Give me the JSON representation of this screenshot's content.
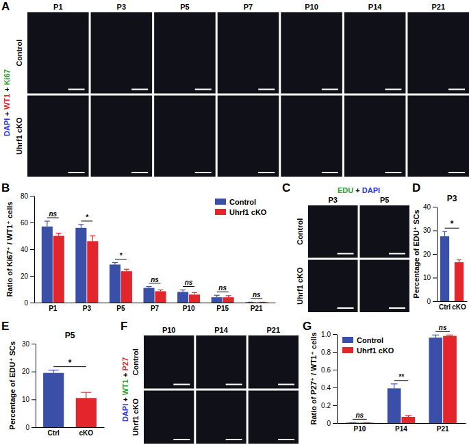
{
  "chart_data": [
    {
      "type": "bar",
      "panel": "B",
      "y_label": "Ratio of Ki67⁺ / WT1⁺ cells",
      "categories": [
        "P1",
        "P3",
        "P5",
        "P7",
        "P10",
        "P15",
        "P21"
      ],
      "series": [
        {
          "name": "Control",
          "color": "#3a4fa8",
          "values": [
            57,
            56,
            28.5,
            11,
            8,
            4,
            0.3
          ],
          "errors": [
            4,
            2.5,
            1.5,
            1,
            1.5,
            1.5,
            0
          ]
        },
        {
          "name": "Uhrf1 cKO",
          "color": "#e3262b",
          "values": [
            50,
            46,
            23.5,
            8.5,
            6,
            4,
            0.3
          ],
          "errors": [
            2,
            4,
            1.5,
            1,
            1.5,
            1.2,
            0
          ]
        }
      ],
      "annotations": [
        "ns",
        "*",
        "*",
        "ns",
        "ns",
        "ns",
        "ns"
      ],
      "ylim": [
        0,
        80
      ],
      "yticks": [
        0,
        20,
        40,
        60,
        80
      ],
      "legend": "top-right"
    },
    {
      "type": "bar",
      "panel": "D",
      "title": "P3",
      "y_label": "Percentage of EDU⁺ SCs",
      "categories": [
        "Ctrl",
        "cKO"
      ],
      "values": [
        27.5,
        16.5
      ],
      "errors": [
        2,
        1
      ],
      "colors": [
        "#3a4fa8",
        "#e3262b"
      ],
      "annotation": "*",
      "ylim": [
        0,
        40
      ],
      "yticks": [
        0,
        10,
        20,
        30,
        40
      ]
    },
    {
      "type": "bar",
      "panel": "E",
      "title": "P5",
      "y_label": "Percentage of EDU⁺ SCs",
      "categories": [
        "Ctrl",
        "cKO"
      ],
      "values": [
        19.5,
        10.5
      ],
      "errors": [
        1,
        2
      ],
      "colors": [
        "#3a4fa8",
        "#e3262b"
      ],
      "annotation": "*",
      "ylim": [
        0,
        30
      ],
      "yticks": [
        0,
        10,
        20,
        30
      ]
    },
    {
      "type": "bar",
      "panel": "G",
      "y_label": "Ratio of P27⁺ / WT1⁺ cells",
      "categories": [
        "P10",
        "P14",
        "P21"
      ],
      "series": [
        {
          "name": "Control",
          "color": "#3a4fa8",
          "values": [
            0.005,
            0.39,
            0.96
          ],
          "errors": [
            0,
            0.05,
            0.03
          ]
        },
        {
          "name": "Uhrf1 cKO",
          "color": "#e3262b",
          "values": [
            0.005,
            0.07,
            0.98
          ],
          "errors": [
            0,
            0.015,
            0.01
          ]
        }
      ],
      "annotations": [
        "ns",
        "**",
        "ns"
      ],
      "ylim": [
        0,
        1
      ],
      "yticks": [
        0,
        0.2,
        0.4,
        0.6,
        0.8,
        {
          "value": 1,
          "label": "1.0"
        }
      ],
      "legend": "top-left"
    }
  ],
  "image_panels": [
    {
      "panel": "A",
      "stain_label": [
        {
          "text": "DAPI",
          "color": "#2b35e0"
        },
        {
          "text": " + ",
          "color": "#000000"
        },
        {
          "text": "WT1",
          "color": "#e3262b"
        },
        {
          "text": " + ",
          "color": "#000000"
        },
        {
          "text": "Ki67",
          "color": "#2ca02c"
        }
      ],
      "columns": [
        "P1",
        "P3",
        "P5",
        "P7",
        "P10",
        "P14",
        "P21"
      ],
      "rows": [
        "Control",
        "Uhrf1 cKO"
      ]
    },
    {
      "panel": "C",
      "stain_label": [
        {
          "text": "EDU",
          "color": "#2ca02c"
        },
        {
          "text": " + ",
          "color": "#000000"
        },
        {
          "text": "DAPI",
          "color": "#2b35e0"
        }
      ],
      "columns": [
        "P3",
        "P5"
      ],
      "rows": [
        "Control",
        "Uhrf1 cKO"
      ]
    },
    {
      "panel": "F",
      "stain_label": [
        {
          "text": "DAPI",
          "color": "#2b35e0"
        },
        {
          "text": " + ",
          "color": "#000000"
        },
        {
          "text": "WT1",
          "color": "#2ca02c"
        },
        {
          "text": " + ",
          "color": "#000000"
        },
        {
          "text": "P27",
          "color": "#e3262b"
        }
      ],
      "columns": [
        "P10",
        "P14",
        "P21"
      ],
      "rows": [
        "Control",
        "Uhrf1 cKO"
      ]
    }
  ]
}
